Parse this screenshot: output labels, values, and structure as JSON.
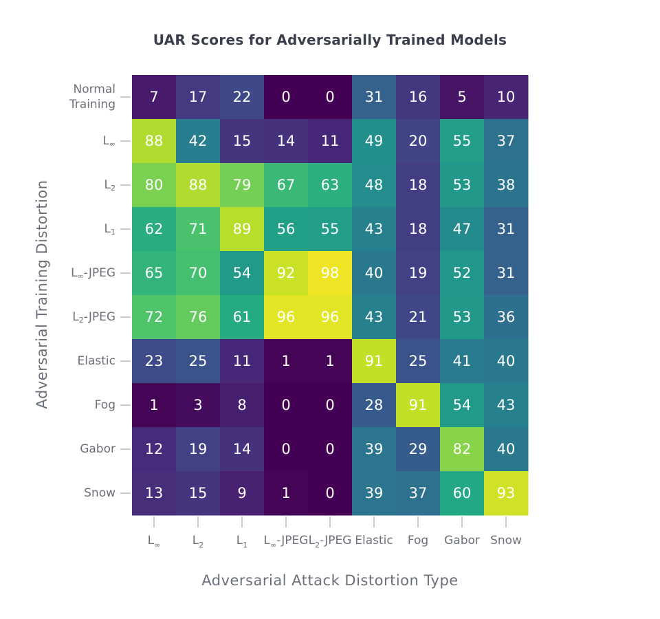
{
  "chart_data": {
    "type": "heatmap",
    "title": "UAR Scores for Adversarially Trained Models",
    "xlabel": "Adversarial Attack Distortion Type",
    "ylabel": "Adversarial Training Distortion",
    "x_categories": [
      "L∞",
      "L2",
      "L1",
      "L∞-JPEG",
      "L2-JPEG",
      "Elastic",
      "Fog",
      "Gabor",
      "Snow"
    ],
    "y_categories": [
      "Normal\nTraining",
      "L∞",
      "L2",
      "L1",
      "L∞-JPEG",
      "L2-JPEG",
      "Elastic",
      "Fog",
      "Gabor",
      "Snow"
    ],
    "values": [
      [
        7,
        17,
        22,
        0,
        0,
        31,
        16,
        5,
        10
      ],
      [
        88,
        42,
        15,
        14,
        11,
        49,
        20,
        55,
        37
      ],
      [
        80,
        88,
        79,
        67,
        63,
        48,
        18,
        53,
        38
      ],
      [
        62,
        71,
        89,
        56,
        55,
        43,
        18,
        47,
        31
      ],
      [
        65,
        70,
        54,
        92,
        98,
        40,
        19,
        52,
        31
      ],
      [
        72,
        76,
        61,
        96,
        96,
        43,
        21,
        53,
        36
      ],
      [
        23,
        25,
        11,
        1,
        1,
        91,
        25,
        41,
        40
      ],
      [
        1,
        3,
        8,
        0,
        0,
        28,
        91,
        54,
        43
      ],
      [
        12,
        19,
        14,
        0,
        0,
        39,
        29,
        82,
        40
      ],
      [
        13,
        15,
        9,
        1,
        0,
        39,
        37,
        60,
        93
      ]
    ],
    "colormap": "viridis",
    "value_range": [
      0,
      100
    ],
    "colors": {
      "cell_text": "#ffffff",
      "tick_text": "#6b707a",
      "title_text": "#3a3f4b"
    }
  }
}
